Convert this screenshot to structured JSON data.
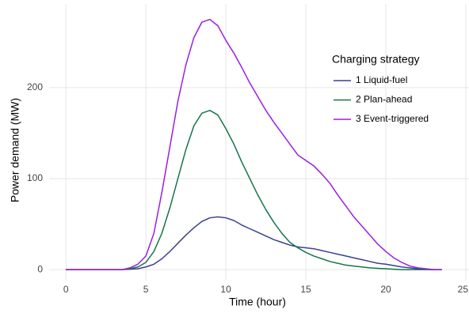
{
  "chart_data": {
    "type": "line",
    "x_label": "Time (hour)",
    "y_label": "Power demand (MW)",
    "legend_title": "Charging strategy",
    "x": [
      0,
      0.5,
      1,
      1.5,
      2,
      2.5,
      3,
      3.5,
      4,
      4.5,
      5,
      5.5,
      6,
      6.5,
      7,
      7.5,
      8,
      8.5,
      9,
      9.5,
      10,
      10.5,
      11,
      11.5,
      12,
      12.5,
      13,
      13.5,
      14,
      14.5,
      15,
      15.5,
      16,
      16.5,
      17,
      17.5,
      18,
      18.5,
      19,
      19.5,
      20,
      20.5,
      21,
      21.5,
      22,
      22.5,
      23,
      23.5
    ],
    "series": [
      {
        "name": "1 Liquid-fuel",
        "color": "#3a3f94",
        "values": [
          0,
          0,
          0,
          0,
          0,
          0,
          0,
          0,
          0.5,
          1,
          3,
          6,
          12,
          20,
          29,
          38,
          46,
          53,
          57,
          58,
          57,
          54,
          49,
          45,
          41,
          37,
          33,
          30,
          27,
          25,
          24,
          23,
          21,
          19,
          17,
          15,
          13,
          11,
          9,
          7,
          6,
          4.5,
          3,
          2,
          1,
          0.5,
          0,
          0
        ]
      },
      {
        "name": "2 Plan-ahead",
        "color": "#17744a",
        "values": [
          0,
          0,
          0,
          0,
          0,
          0,
          0,
          0,
          1,
          3,
          8,
          20,
          40,
          68,
          100,
          132,
          158,
          172,
          175,
          170,
          155,
          138,
          118,
          100,
          82,
          66,
          52,
          40,
          30,
          24,
          19,
          15,
          12,
          9,
          7,
          5,
          4,
          3,
          2,
          1.5,
          1,
          0.5,
          0,
          0,
          0,
          0,
          0,
          0
        ]
      },
      {
        "name": "3 Event-triggered",
        "color": "#9b1fe0",
        "values": [
          0,
          0,
          0,
          0,
          0,
          0,
          0,
          0,
          2,
          6,
          15,
          40,
          85,
          135,
          185,
          225,
          255,
          272,
          275,
          268,
          252,
          238,
          222,
          205,
          190,
          175,
          162,
          150,
          138,
          126,
          120,
          114,
          105,
          95,
          82,
          70,
          58,
          48,
          38,
          28,
          20,
          13,
          8,
          4,
          2,
          1,
          0,
          0
        ]
      }
    ],
    "xlim": [
      -1.05,
      25.2
    ],
    "xticks": [
      0,
      5,
      10,
      15,
      20,
      25
    ],
    "ylim": [
      -12,
      292
    ],
    "yticks": [
      0,
      100,
      200
    ],
    "grid": true
  }
}
